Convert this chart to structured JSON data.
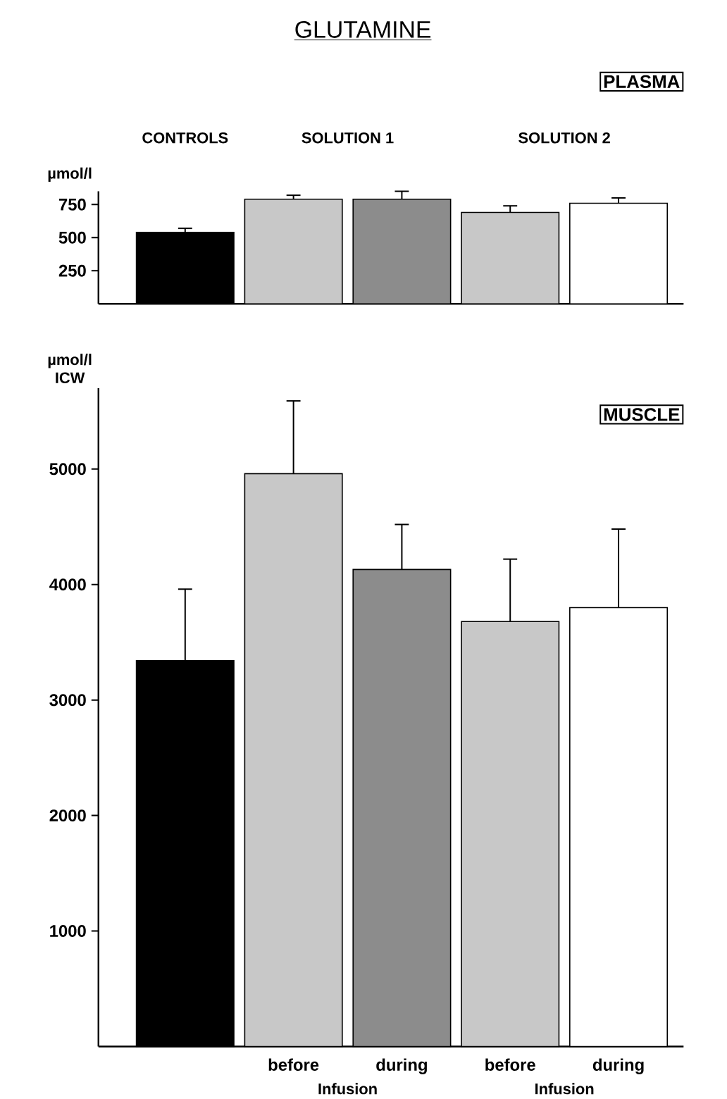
{
  "chart_data": [
    {
      "type": "bar",
      "title": "GLUTAMINE",
      "ylabel": "µmol/l",
      "annotations": [
        "PLASMA",
        "CONTROLS",
        "SOLUTION 1",
        "SOLUTION 2"
      ],
      "categories": [
        null,
        null,
        null,
        null,
        null
      ],
      "values": [
        540,
        790,
        790,
        690,
        760
      ],
      "errors": [
        30,
        30,
        60,
        50,
        40
      ],
      "colors": [
        "#000000",
        "#c8c8c8",
        "#8c8c8c",
        "#c8c8c8",
        "#ffffff"
      ],
      "ylim": [
        0,
        850
      ],
      "yticks": [
        250,
        500,
        750
      ]
    },
    {
      "type": "bar",
      "ylabel": "µmol/l ICW",
      "annotations": [
        "MUSCLE",
        "Infusion",
        "Infusion"
      ],
      "categories": [
        null,
        "before",
        "during",
        "before",
        "during"
      ],
      "values": [
        3340,
        4960,
        4130,
        3680,
        3800
      ],
      "errors": [
        620,
        630,
        390,
        540,
        680
      ],
      "colors": [
        "#000000",
        "#c8c8c8",
        "#8c8c8c",
        "#c8c8c8",
        "#ffffff"
      ],
      "ylim": [
        0,
        5700
      ],
      "yticks": [
        1000,
        2000,
        3000,
        4000,
        5000
      ]
    }
  ]
}
